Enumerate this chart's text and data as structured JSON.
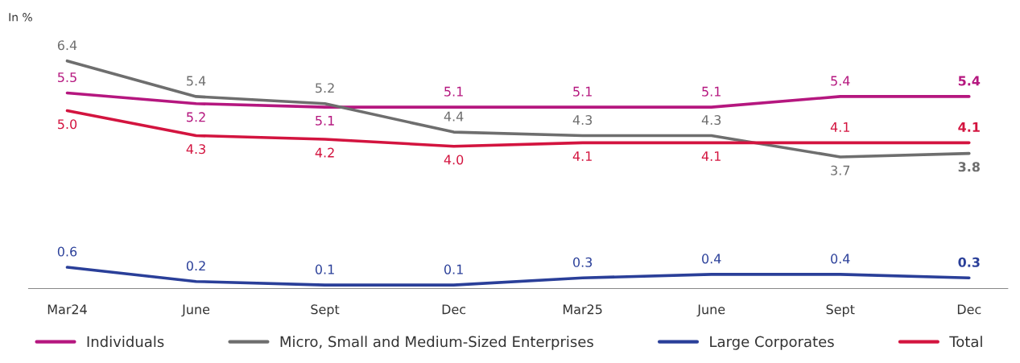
{
  "chart_data": {
    "type": "line",
    "categories": [
      "Mar24",
      "June",
      "Sept",
      "Dec",
      "Mar25",
      "June",
      "Sept",
      "Dec"
    ],
    "series": [
      {
        "name": "Individuals",
        "color": "#b5177f",
        "values": [
          5.5,
          5.2,
          5.1,
          5.1,
          5.1,
          5.1,
          5.4,
          5.4
        ]
      },
      {
        "name": "Micro, Small and Medium-Sized Enterprises",
        "color": "#6e6e6e",
        "values": [
          6.4,
          5.4,
          5.2,
          4.4,
          4.3,
          4.3,
          3.7,
          3.8
        ]
      },
      {
        "name": "Large Corporates",
        "color": "#2a3f99",
        "values": [
          0.6,
          0.2,
          0.1,
          0.1,
          0.3,
          0.4,
          0.4,
          0.3
        ]
      },
      {
        "name": "Total",
        "color": "#d3143f",
        "values": [
          5.0,
          4.3,
          4.2,
          4.0,
          4.1,
          4.1,
          4.1,
          4.1
        ],
        "value_labels": [
          "5.0",
          "4.3",
          "4.2",
          "4.0",
          "4.1",
          "4.1",
          "4.1",
          "4.1"
        ]
      }
    ],
    "annotations": [
      "In %"
    ],
    "data_labels": true,
    "grid": false,
    "legend": "bottom",
    "tick_labels": "x",
    "marker": "none",
    "line_style": "solid"
  }
}
